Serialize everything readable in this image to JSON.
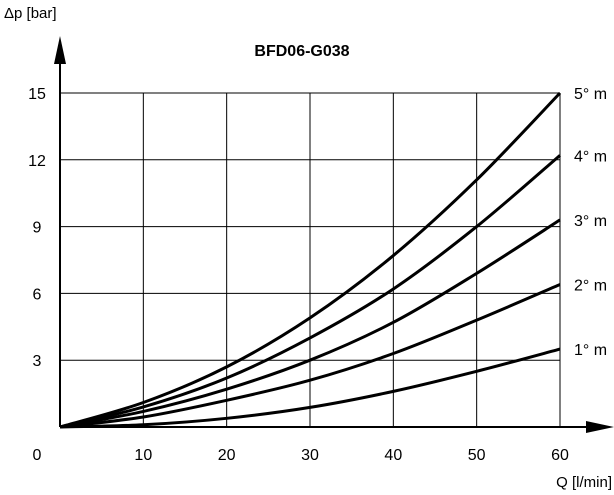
{
  "chart_data": {
    "type": "line",
    "title": "BFD06-G038",
    "xlabel": "Q [l/min]",
    "ylabel": "Δp [bar]",
    "xlim": [
      0,
      60
    ],
    "ylim": [
      0,
      15
    ],
    "x_ticks": [
      "0",
      "10",
      "20",
      "30",
      "40",
      "50",
      "60"
    ],
    "y_ticks": [
      "3",
      "6",
      "9",
      "12",
      "15"
    ],
    "grid": true,
    "series": [
      {
        "name": "1° m",
        "x": [
          0,
          10,
          20,
          30,
          40,
          50,
          60
        ],
        "values": [
          0,
          0.1,
          0.39,
          0.88,
          1.6,
          2.5,
          3.5
        ]
      },
      {
        "name": "2° m",
        "x": [
          0,
          10,
          20,
          30,
          40,
          50,
          60
        ],
        "values": [
          0,
          0.45,
          1.2,
          2.1,
          3.3,
          4.8,
          6.4
        ]
      },
      {
        "name": "3° m",
        "x": [
          0,
          10,
          20,
          30,
          40,
          50,
          60
        ],
        "values": [
          0,
          0.7,
          1.7,
          3.0,
          4.7,
          6.9,
          9.3
        ]
      },
      {
        "name": "4° m",
        "x": [
          0,
          10,
          20,
          30,
          40,
          50,
          60
        ],
        "values": [
          0,
          0.9,
          2.2,
          4.0,
          6.2,
          9.0,
          12.2
        ]
      },
      {
        "name": "5° m",
        "x": [
          0,
          10,
          20,
          30,
          40,
          50,
          60
        ],
        "values": [
          0,
          1.1,
          2.7,
          4.9,
          7.7,
          11.1,
          15.0
        ]
      }
    ]
  }
}
